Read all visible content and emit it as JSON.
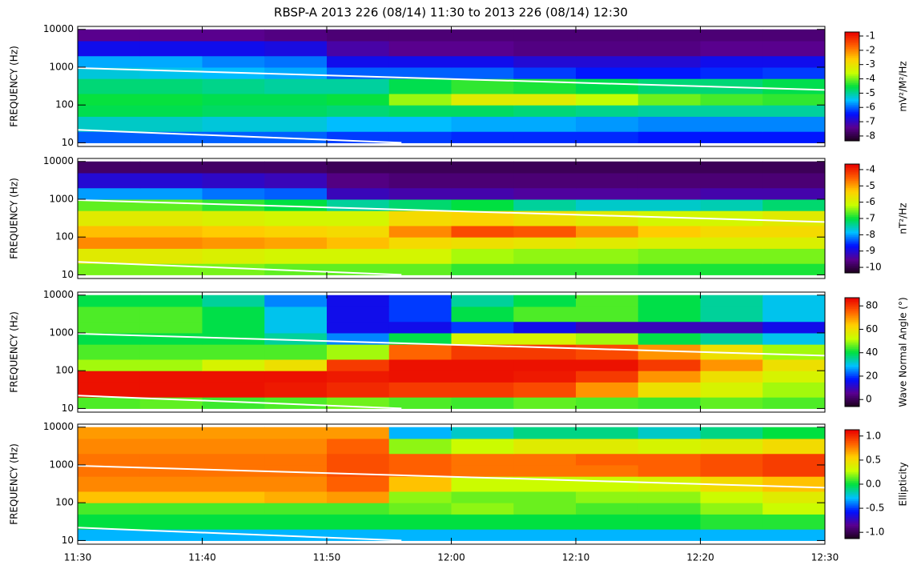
{
  "chart_data": [
    {
      "type": "heatmap",
      "title": "RBSP-A 2013 226 (08/14) 11:30 to 2013 226 (08/14) 12:30",
      "ylabel": "FREQUENCY (Hz)",
      "log_y": true,
      "xlim": [
        0,
        60
      ],
      "xticks": [
        0,
        10,
        20,
        30,
        40,
        50,
        60
      ],
      "ylim": [
        8,
        12000
      ],
      "yticks": [
        10,
        100,
        1000,
        10000
      ],
      "xbins": [
        0,
        5,
        10,
        15,
        20,
        25,
        30,
        35,
        40,
        45,
        50,
        55,
        60
      ],
      "ybins": [
        10,
        20,
        50,
        100,
        200,
        500,
        1000,
        2000,
        5000,
        10000
      ],
      "values": [
        [
          -6,
          -6,
          -6,
          -6,
          -6.2,
          -6.2,
          -6.3,
          -6.3,
          -6.3,
          -6.4,
          -6.4,
          -6.4
        ],
        [
          -5.2,
          -5.2,
          -5.3,
          -5.3,
          -5.5,
          -5.5,
          -5.6,
          -5.6,
          -5.7,
          -5.8,
          -5.8,
          -5.8
        ],
        [
          -4.6,
          -4.6,
          -4.7,
          -4.7,
          -4.8,
          -4.7,
          -4.7,
          -4.8,
          -4.9,
          -5,
          -5,
          -5
        ],
        [
          -4.5,
          -4.5,
          -4.6,
          -4.6,
          -4.5,
          -3.8,
          -3.2,
          -3.2,
          -3.6,
          -4,
          -4.2,
          -4.3
        ],
        [
          -4.8,
          -4.8,
          -4.9,
          -5,
          -5,
          -4.6,
          -4.3,
          -4.4,
          -4.6,
          -4.8,
          -4.8,
          -4.6
        ],
        [
          -5.3,
          -5.4,
          -5.5,
          -5.6,
          -6,
          -6,
          -6,
          -6.2,
          -6.4,
          -6.4,
          -6.3,
          -6.2
        ],
        [
          -5.6,
          -5.6,
          -5.8,
          -5.9,
          -6.6,
          -6.6,
          -6.6,
          -6.8,
          -6.8,
          -6.8,
          -6.6,
          -6.6
        ],
        [
          -6.6,
          -6.6,
          -6.6,
          -6.7,
          -7.2,
          -7.4,
          -7.4,
          -7.5,
          -7.5,
          -7.5,
          -7.4,
          -7.4
        ],
        [
          -7.4,
          -7.4,
          -7.4,
          -7.5,
          -7.6,
          -7.6,
          -7.6,
          -7.6,
          -7.6,
          -7.6,
          -7.6,
          -7.6
        ]
      ],
      "series": [
        {
          "color": "#ffffff",
          "x": [
            0,
            60
          ],
          "values": [
            950,
            250
          ]
        },
        {
          "color": "#ffffff",
          "x": [
            0,
            26
          ],
          "values": [
            22,
            10
          ]
        }
      ],
      "zlim": [
        -8.34,
        -0.72
      ],
      "zticks": [
        -1,
        -2,
        -3,
        -4,
        -5,
        -6,
        -7,
        -8
      ],
      "zlabel": "mV²/M²/Hz",
      "colormap": [
        "#1a0018",
        "#5a0090",
        "#0010ff",
        "#00c0ff",
        "#00e040",
        "#c8ff00",
        "#ffd000",
        "#ff6000",
        "#e80000"
      ]
    },
    {
      "type": "heatmap",
      "ylabel": "FREQUENCY (Hz)",
      "log_y": true,
      "xlim": [
        0,
        60
      ],
      "xticks": [
        0,
        10,
        20,
        30,
        40,
        50,
        60
      ],
      "ylim": [
        8,
        12000
      ],
      "yticks": [
        10,
        100,
        1000,
        10000
      ],
      "xbins": [
        0,
        5,
        10,
        15,
        20,
        25,
        30,
        35,
        40,
        45,
        50,
        55,
        60
      ],
      "ybins": [
        10,
        20,
        50,
        100,
        200,
        500,
        1000,
        2000,
        5000,
        10000
      ],
      "values": [
        [
          -6.5,
          -6.5,
          -6.5,
          -6.6,
          -6.6,
          -6.6,
          -6.8,
          -6.8,
          -6.8,
          -6.9,
          -6.9,
          -6.9
        ],
        [
          -5.8,
          -5.8,
          -5.9,
          -6,
          -6,
          -6,
          -6.3,
          -6.4,
          -6.4,
          -6.5,
          -6.5,
          -6.5
        ],
        [
          -4.8,
          -4.8,
          -4.9,
          -5,
          -5.2,
          -5.5,
          -5.6,
          -5.7,
          -5.8,
          -5.9,
          -5.9,
          -5.9
        ],
        [
          -5.2,
          -5.2,
          -5.3,
          -5.4,
          -5.5,
          -4.8,
          -4.3,
          -4.4,
          -4.9,
          -5.3,
          -5.5,
          -5.5
        ],
        [
          -5.8,
          -5.8,
          -5.9,
          -6,
          -6,
          -5.5,
          -5.4,
          -5.6,
          -5.8,
          -6,
          -6,
          -5.8
        ],
        [
          -6.6,
          -6.6,
          -6.8,
          -7,
          -7.4,
          -7.2,
          -7,
          -7.4,
          -7.6,
          -7.6,
          -7.5,
          -7.2
        ],
        [
          -8,
          -8,
          -8.2,
          -8.3,
          -9.2,
          -9.3,
          -9.3,
          -9.4,
          -9.4,
          -9.4,
          -9.3,
          -9.3
        ],
        [
          -9,
          -9,
          -9.1,
          -9.2,
          -9.6,
          -9.7,
          -9.7,
          -9.7,
          -9.7,
          -9.7,
          -9.7,
          -9.7
        ],
        [
          -9.8,
          -9.8,
          -9.8,
          -9.8,
          -9.9,
          -9.9,
          -9.9,
          -9.9,
          -9.9,
          -9.9,
          -9.9,
          -9.9
        ]
      ],
      "series": [
        {
          "color": "#ffffff",
          "x": [
            0,
            60
          ],
          "values": [
            950,
            250
          ]
        },
        {
          "color": "#ffffff",
          "x": [
            0,
            26
          ],
          "values": [
            22,
            10
          ]
        }
      ],
      "zlim": [
        -10.34,
        -3.66
      ],
      "zticks": [
        -4,
        -5,
        -6,
        -7,
        -8,
        -9,
        -10
      ],
      "zlabel": "nT²/Hz",
      "colormap": [
        "#1a0018",
        "#5a0090",
        "#0010ff",
        "#00c0ff",
        "#00e040",
        "#c8ff00",
        "#ffd000",
        "#ff6000",
        "#e80000"
      ]
    },
    {
      "type": "heatmap",
      "ylabel": "FREQUENCY (Hz)",
      "log_y": true,
      "xlim": [
        0,
        60
      ],
      "xticks": [
        0,
        10,
        20,
        30,
        40,
        50,
        60
      ],
      "ylim": [
        8,
        12000
      ],
      "yticks": [
        10,
        100,
        1000,
        10000
      ],
      "xbins": [
        0,
        5,
        10,
        15,
        20,
        25,
        30,
        35,
        40,
        45,
        50,
        55,
        60
      ],
      "ybins": [
        10,
        20,
        50,
        100,
        200,
        500,
        1000,
        2000,
        5000,
        10000
      ],
      "values": [
        [
          45,
          46,
          44,
          45,
          47,
          45,
          44,
          46,
          45,
          44,
          46,
          45
        ],
        [
          85,
          85,
          85,
          84,
          82,
          80,
          80,
          78,
          70,
          60,
          55,
          50
        ],
        [
          85,
          85,
          85,
          85,
          84,
          85,
          85,
          84,
          80,
          70,
          60,
          55
        ],
        [
          50,
          50,
          55,
          60,
          80,
          85,
          85,
          85,
          85,
          80,
          70,
          60
        ],
        [
          45,
          45,
          45,
          45,
          50,
          75,
          80,
          80,
          78,
          70,
          60,
          50
        ],
        [
          40,
          40,
          40,
          35,
          25,
          40,
          55,
          55,
          50,
          40,
          35,
          30
        ],
        [
          45,
          45,
          40,
          30,
          15,
          15,
          20,
          15,
          10,
          10,
          10,
          15
        ],
        [
          45,
          45,
          40,
          30,
          15,
          20,
          40,
          45,
          45,
          40,
          35,
          30
        ],
        [
          40,
          40,
          35,
          25,
          15,
          20,
          35,
          40,
          45,
          40,
          35,
          30
        ]
      ],
      "series": [
        {
          "color": "#ffffff",
          "x": [
            0,
            60
          ],
          "values": [
            950,
            250
          ]
        },
        {
          "color": "#ffffff",
          "x": [
            0,
            26
          ],
          "values": [
            22,
            10
          ]
        }
      ],
      "zlim": [
        -6,
        87
      ],
      "zticks": [
        0,
        20,
        40,
        60,
        80
      ],
      "zlabel": "Wave Normal Angle (°)",
      "colormap": [
        "#1a0018",
        "#5a0090",
        "#0010ff",
        "#00c0ff",
        "#00e040",
        "#c8ff00",
        "#ffd000",
        "#ff6000",
        "#e80000"
      ]
    },
    {
      "type": "heatmap",
      "ylabel": "FREQUENCY (Hz)",
      "log_y": true,
      "xlim": [
        0,
        60
      ],
      "xticks": [
        {
          "value": 0,
          "label": "11:30"
        },
        {
          "value": 10,
          "label": "11:40"
        },
        {
          "value": 20,
          "label": "11:50"
        },
        {
          "value": 30,
          "label": "12:00"
        },
        {
          "value": 40,
          "label": "12:10"
        },
        {
          "value": 50,
          "label": "12:20"
        },
        {
          "value": 60,
          "label": "12:30"
        }
      ],
      "ylim": [
        8,
        12000
      ],
      "yticks": [
        10,
        100,
        1000,
        10000
      ],
      "xbins": [
        0,
        5,
        10,
        15,
        20,
        25,
        30,
        35,
        40,
        45,
        50,
        55,
        60
      ],
      "ybins": [
        10,
        20,
        50,
        100,
        200,
        500,
        1000,
        2000,
        5000,
        10000
      ],
      "values": [
        [
          -0.3,
          -0.3,
          -0.3,
          -0.3,
          -0.3,
          -0.3,
          -0.3,
          -0.3,
          -0.3,
          -0.3,
          -0.3,
          -0.3
        ],
        [
          0,
          0,
          0,
          0,
          0,
          0,
          0,
          0,
          0,
          0,
          0.05,
          0.05
        ],
        [
          0.1,
          0.1,
          0.1,
          0.1,
          0.1,
          0.15,
          0.2,
          0.15,
          0.1,
          0.1,
          0.2,
          0.3
        ],
        [
          0.6,
          0.6,
          0.6,
          0.65,
          0.7,
          0.2,
          0.15,
          0.15,
          0.2,
          0.2,
          0.3,
          0.4
        ],
        [
          0.75,
          0.75,
          0.75,
          0.75,
          0.85,
          0.6,
          0.3,
          0.3,
          0.3,
          0.35,
          0.5,
          0.6
        ],
        [
          0.8,
          0.8,
          0.8,
          0.8,
          0.9,
          0.85,
          0.8,
          0.8,
          0.8,
          0.85,
          0.9,
          0.95
        ],
        [
          0.8,
          0.8,
          0.8,
          0.8,
          0.9,
          0.85,
          0.8,
          0.8,
          0.85,
          0.85,
          0.9,
          0.95
        ],
        [
          0.75,
          0.75,
          0.75,
          0.75,
          0.85,
          0.2,
          0.3,
          0.4,
          0.4,
          0.35,
          0.4,
          0.5
        ],
        [
          0.7,
          0.7,
          0.7,
          0.7,
          0.7,
          -0.3,
          -0.2,
          -0.1,
          -0.1,
          -0.2,
          -0.1,
          0
        ]
      ],
      "series": [
        {
          "color": "#ffffff",
          "x": [
            0,
            60
          ],
          "values": [
            950,
            250
          ]
        },
        {
          "color": "#ffffff",
          "x": [
            0,
            26
          ],
          "values": [
            22,
            10
          ]
        }
      ],
      "zlim": [
        -1.13,
        1.13
      ],
      "zticks": [
        {
          "value": 1,
          "label": "1.0"
        },
        {
          "value": 0.5,
          "label": "0.5"
        },
        {
          "value": 0,
          "label": "0.0"
        },
        {
          "value": -0.5,
          "label": "-0.5"
        },
        {
          "value": -1,
          "label": "-1.0"
        }
      ],
      "zlabel": "Ellipticity",
      "colormap": [
        "#1a0018",
        "#5a0090",
        "#0010ff",
        "#00c0ff",
        "#00e040",
        "#c8ff00",
        "#ffd000",
        "#ff6000",
        "#e80000"
      ]
    }
  ]
}
